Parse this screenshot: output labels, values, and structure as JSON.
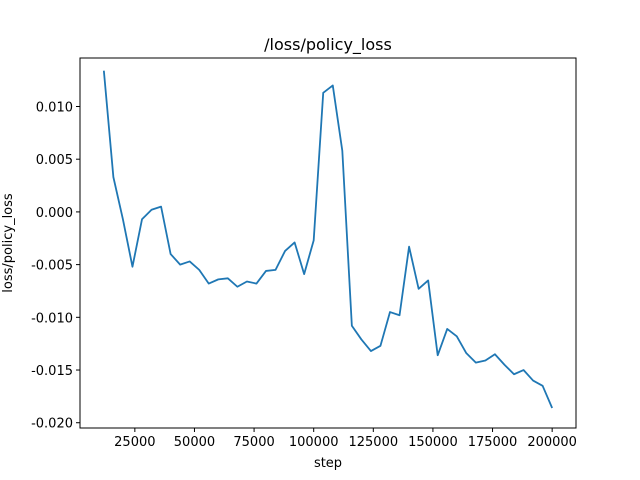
{
  "chart_data": {
    "type": "line",
    "title": "/loss/policy_loss",
    "xlabel": "step",
    "ylabel": "loss/policy_loss",
    "xlim": [
      2000,
      210000
    ],
    "ylim": [
      -0.0205,
      0.0146
    ],
    "xticks": [
      25000,
      50000,
      75000,
      100000,
      125000,
      150000,
      175000,
      200000
    ],
    "xtick_labels": [
      "25000",
      "50000",
      "75000",
      "100000",
      "125000",
      "150000",
      "175000",
      "200000"
    ],
    "yticks": [
      -0.02,
      -0.015,
      -0.01,
      -0.005,
      0.0,
      0.005,
      0.01
    ],
    "ytick_labels": [
      "-0.020",
      "-0.015",
      "-0.010",
      "-0.005",
      "0.000",
      "0.005",
      "0.010"
    ],
    "grid": false,
    "series": [
      {
        "name": "",
        "color": "#1f77b4",
        "x": [
          12000,
          16000,
          20000,
          24000,
          28000,
          32000,
          36000,
          40000,
          44000,
          48000,
          52000,
          56000,
          60000,
          64000,
          68000,
          72000,
          76000,
          80000,
          84000,
          88000,
          92000,
          96000,
          100000,
          104000,
          108000,
          112000,
          116000,
          120000,
          124000,
          128000,
          132000,
          136000,
          140000,
          144000,
          148000,
          152000,
          156000,
          160000,
          164000,
          168000,
          172000,
          176000,
          180000,
          184000,
          188000,
          192000,
          196000,
          200000
        ],
        "y": [
          0.0134,
          0.0033,
          -0.0007,
          -0.0052,
          -0.0007,
          0.0002,
          0.0005,
          -0.004,
          -0.005,
          -0.0047,
          -0.0055,
          -0.0068,
          -0.0064,
          -0.0063,
          -0.0071,
          -0.0066,
          -0.0068,
          -0.0056,
          -0.0055,
          -0.0037,
          -0.0029,
          -0.0059,
          -0.0027,
          0.0113,
          0.012,
          0.0058,
          -0.0108,
          -0.0121,
          -0.0132,
          -0.0127,
          -0.0095,
          -0.0098,
          -0.0033,
          -0.0073,
          -0.0065,
          -0.0136,
          -0.0111,
          -0.0118,
          -0.0134,
          -0.0143,
          -0.0141,
          -0.0135,
          -0.0145,
          -0.0154,
          -0.015,
          -0.016,
          -0.0165,
          -0.0186
        ]
      }
    ]
  }
}
